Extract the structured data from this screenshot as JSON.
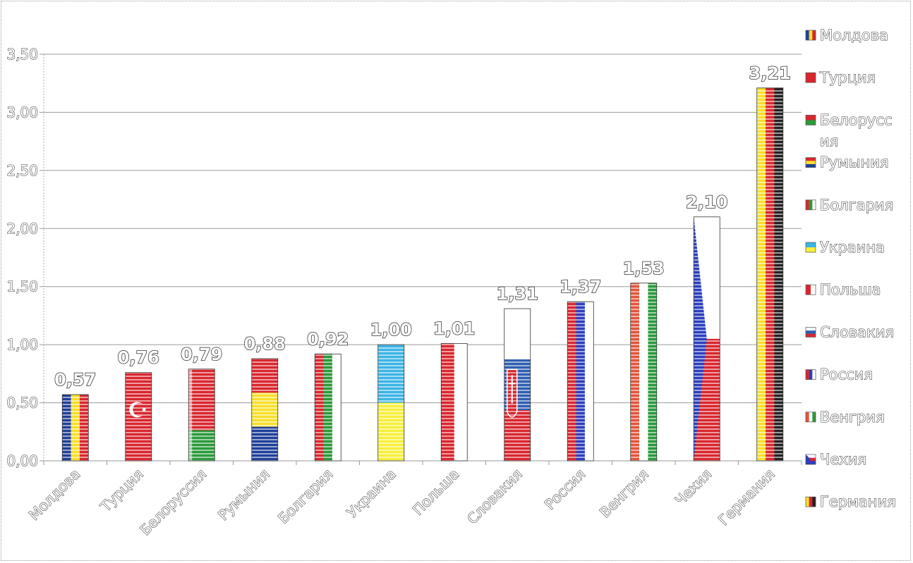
{
  "chart_data": {
    "type": "bar",
    "categories": [
      "Молдова",
      "Турция",
      "Белоруссия",
      "Румыния",
      "Болгария",
      "Украина",
      "Польша",
      "Словакия",
      "Россия",
      "Венгрия",
      "Чехия",
      "Германия"
    ],
    "values": [
      0.57,
      0.76,
      0.79,
      0.88,
      0.92,
      1.0,
      1.01,
      1.31,
      1.37,
      1.53,
      2.1,
      3.21
    ],
    "data_labels": [
      "0,57",
      "0,76",
      "0,79",
      "0,88",
      "0,92",
      "1,00",
      "1,01",
      "1,31",
      "1,37",
      "1,53",
      "2,10",
      "3,21"
    ],
    "y_ticks": [
      {
        "value": 0,
        "label": "0,00"
      },
      {
        "value": 0.5,
        "label": "0,50"
      },
      {
        "value": 1.0,
        "label": "1,00"
      },
      {
        "value": 1.5,
        "label": "1,50"
      },
      {
        "value": 2.0,
        "label": "2,00"
      },
      {
        "value": 2.5,
        "label": "2,50"
      },
      {
        "value": 3.0,
        "label": "3,00"
      },
      {
        "value": 3.5,
        "label": "3,50"
      }
    ],
    "ylim": [
      0,
      3.5
    ],
    "grid": true,
    "legend": {
      "position": "right",
      "entries": [
        "Молдова",
        "Турция",
        "Белорусс ия",
        "Румыния",
        "Болгария",
        "Украина",
        "Польша",
        "Словакия",
        "Россия",
        "Венгрия",
        "Чехия",
        "Германия"
      ]
    },
    "bar_fills": [
      {
        "type": "v",
        "colors": [
          "#1f3f9a",
          "#f7df2a",
          "#d9262e"
        ]
      },
      {
        "type": "h",
        "colors": [
          "#d9262e"
        ],
        "mark": "crescent"
      },
      {
        "type": "h",
        "colors": [
          "#d9262e",
          "#2a9a3a"
        ],
        "ratios": [
          0.667,
          0.333
        ],
        "stripe": "#ffffff"
      },
      {
        "type": "h",
        "colors": [
          "#d9262e",
          "#f7df2a",
          "#1f3f9a"
        ]
      },
      {
        "type": "v",
        "colors": [
          "#d9262e",
          "#2a9a3a",
          "#ffffff"
        ]
      },
      {
        "type": "h",
        "colors": [
          "#3cb4e6",
          "#f7ef3a"
        ]
      },
      {
        "type": "v",
        "colors": [
          "#d9262e",
          "#ffffff"
        ]
      },
      {
        "type": "h",
        "colors": [
          "#ffffff",
          "#2f5fb0",
          "#d9262e"
        ],
        "mark": "shield"
      },
      {
        "type": "v",
        "colors": [
          "#d9262e",
          "#2a3fc0",
          "#ffffff"
        ]
      },
      {
        "type": "v",
        "colors": [
          "#e2553a",
          "#ffffff",
          "#2a9a3a"
        ]
      },
      {
        "type": "czech",
        "colors": [
          "#ffffff",
          "#d9262e",
          "#2a3fc0"
        ]
      },
      {
        "type": "v",
        "colors": [
          "#f7df2a",
          "#d9262e",
          "#222222"
        ]
      }
    ]
  }
}
